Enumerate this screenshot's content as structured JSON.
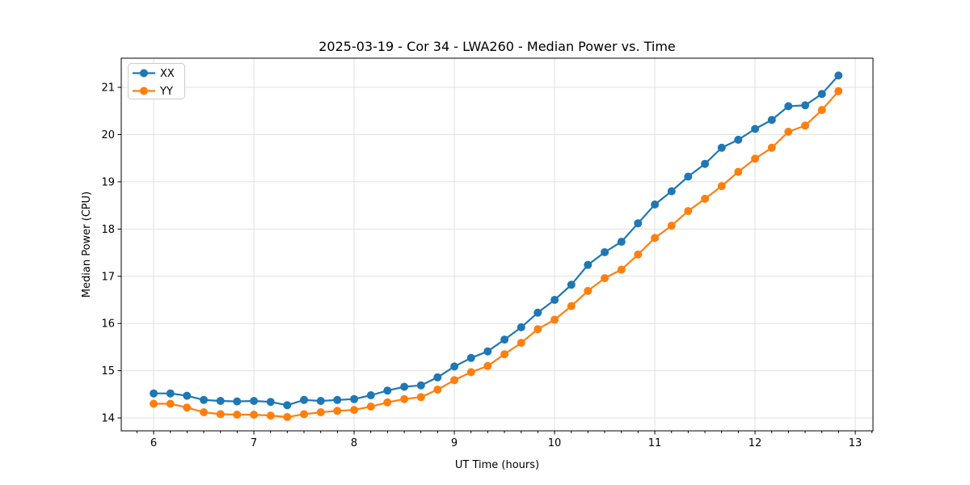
{
  "chart": {
    "title": "2025-03-19 - Cor 34 - LWA260 - Median Power vs. Time",
    "xlabel": "UT Time (hours)",
    "ylabel": "Median Power (CPU)"
  },
  "legend": {
    "position": "upper left",
    "items": [
      {
        "label": "XX",
        "color": "#1f77b4"
      },
      {
        "label": "YY",
        "color": "#ff7f0e"
      }
    ]
  },
  "colors": {
    "series_xx": "#1f77b4",
    "series_yy": "#ff7f0e",
    "grid": "#e0e0e0",
    "spine": "#000000",
    "background": "#ffffff",
    "legend_edge": "#cccccc"
  },
  "chart_data": {
    "type": "line",
    "title": "2025-03-19 - Cor 34 - LWA260 - Median Power vs. Time",
    "xlabel": "UT Time (hours)",
    "ylabel": "Median Power (CPU)",
    "grid": true,
    "marker": "o",
    "legend_position": "upper left",
    "xlim": [
      5.677,
      13.177
    ],
    "ylim": [
      13.727,
      21.617
    ],
    "xticks": [
      6,
      7,
      8,
      9,
      10,
      11,
      12,
      13
    ],
    "yticks": [
      14,
      15,
      16,
      17,
      18,
      19,
      20,
      21
    ],
    "x_minor_step": 0.166667,
    "x": [
      6.0,
      6.167,
      6.333,
      6.5,
      6.667,
      6.833,
      7.0,
      7.167,
      7.333,
      7.5,
      7.667,
      7.833,
      8.0,
      8.167,
      8.333,
      8.5,
      8.667,
      8.833,
      9.0,
      9.167,
      9.333,
      9.5,
      9.667,
      9.833,
      10.0,
      10.167,
      10.333,
      10.5,
      10.667,
      10.833,
      11.0,
      11.167,
      11.333,
      11.5,
      11.667,
      11.833,
      12.0,
      12.167,
      12.333,
      12.5,
      12.667,
      12.833
    ],
    "series": [
      {
        "name": "XX",
        "color": "#1f77b4",
        "values": [
          14.52,
          14.52,
          14.47,
          14.38,
          14.36,
          14.35,
          14.36,
          14.34,
          14.27,
          14.38,
          14.36,
          14.38,
          14.4,
          14.48,
          14.58,
          14.66,
          14.69,
          14.86,
          15.09,
          15.27,
          15.41,
          15.66,
          15.92,
          16.23,
          16.5,
          16.82,
          17.24,
          17.51,
          17.73,
          18.12,
          18.52,
          18.8,
          19.11,
          19.38,
          19.72,
          19.89,
          20.12,
          20.31,
          20.6,
          20.62,
          20.86,
          21.25
        ]
      },
      {
        "name": "YY",
        "color": "#ff7f0e",
        "values": [
          14.3,
          14.3,
          14.22,
          14.12,
          14.08,
          14.07,
          14.07,
          14.05,
          14.02,
          14.08,
          14.12,
          14.15,
          14.17,
          14.24,
          14.33,
          14.4,
          14.44,
          14.6,
          14.8,
          14.97,
          15.1,
          15.35,
          15.59,
          15.88,
          16.08,
          16.37,
          16.69,
          16.96,
          17.14,
          17.46,
          17.81,
          18.07,
          18.38,
          18.64,
          18.91,
          19.21,
          19.49,
          19.72,
          20.06,
          20.19,
          20.52,
          20.92
        ]
      }
    ]
  }
}
